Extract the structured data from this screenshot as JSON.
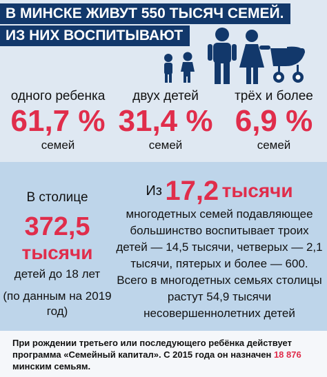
{
  "header": {
    "line1": "В МИНСКЕ ЖИВУТ 550 ТЫСЯЧ СЕМЕЙ.",
    "line2": "ИЗ НИХ ВОСПИТЫВАЮТ"
  },
  "stats": [
    {
      "label": "одного ребенка",
      "value": "61,7 %",
      "unit": "семей"
    },
    {
      "label": "двух детей",
      "value": "31,4 %",
      "unit": "семей"
    },
    {
      "label": "трёх и более",
      "value": "6,9 %",
      "unit": "семей"
    }
  ],
  "capital": {
    "intro": "В столице",
    "number": "372,5",
    "number_unit": "тысячи",
    "desc": "детей до 18 лет",
    "source": "(по данным на 2019 год)"
  },
  "large_families": {
    "prefix": "Из",
    "number": "17,2",
    "unit": "тысячи",
    "text": "многодетных семей подавляющее большинство воспитывает троих детей — 14,5 тысячи, четверых — 2,1 тысячи, пятерых и более — 600. Всего в многодетных семьях столицы растут 54,9 тысячи несовершеннолетних детей"
  },
  "footer": {
    "text_before": "При рождении третьего или последующего ребёнка действует программа «Семейный капитал». С 2015 года он назначен",
    "highlight": "18 876",
    "text_after": "минским семьям."
  },
  "colors": {
    "accent": "#e02d4b",
    "header_bar": "#12386b",
    "silhouettes": "#12386b"
  }
}
